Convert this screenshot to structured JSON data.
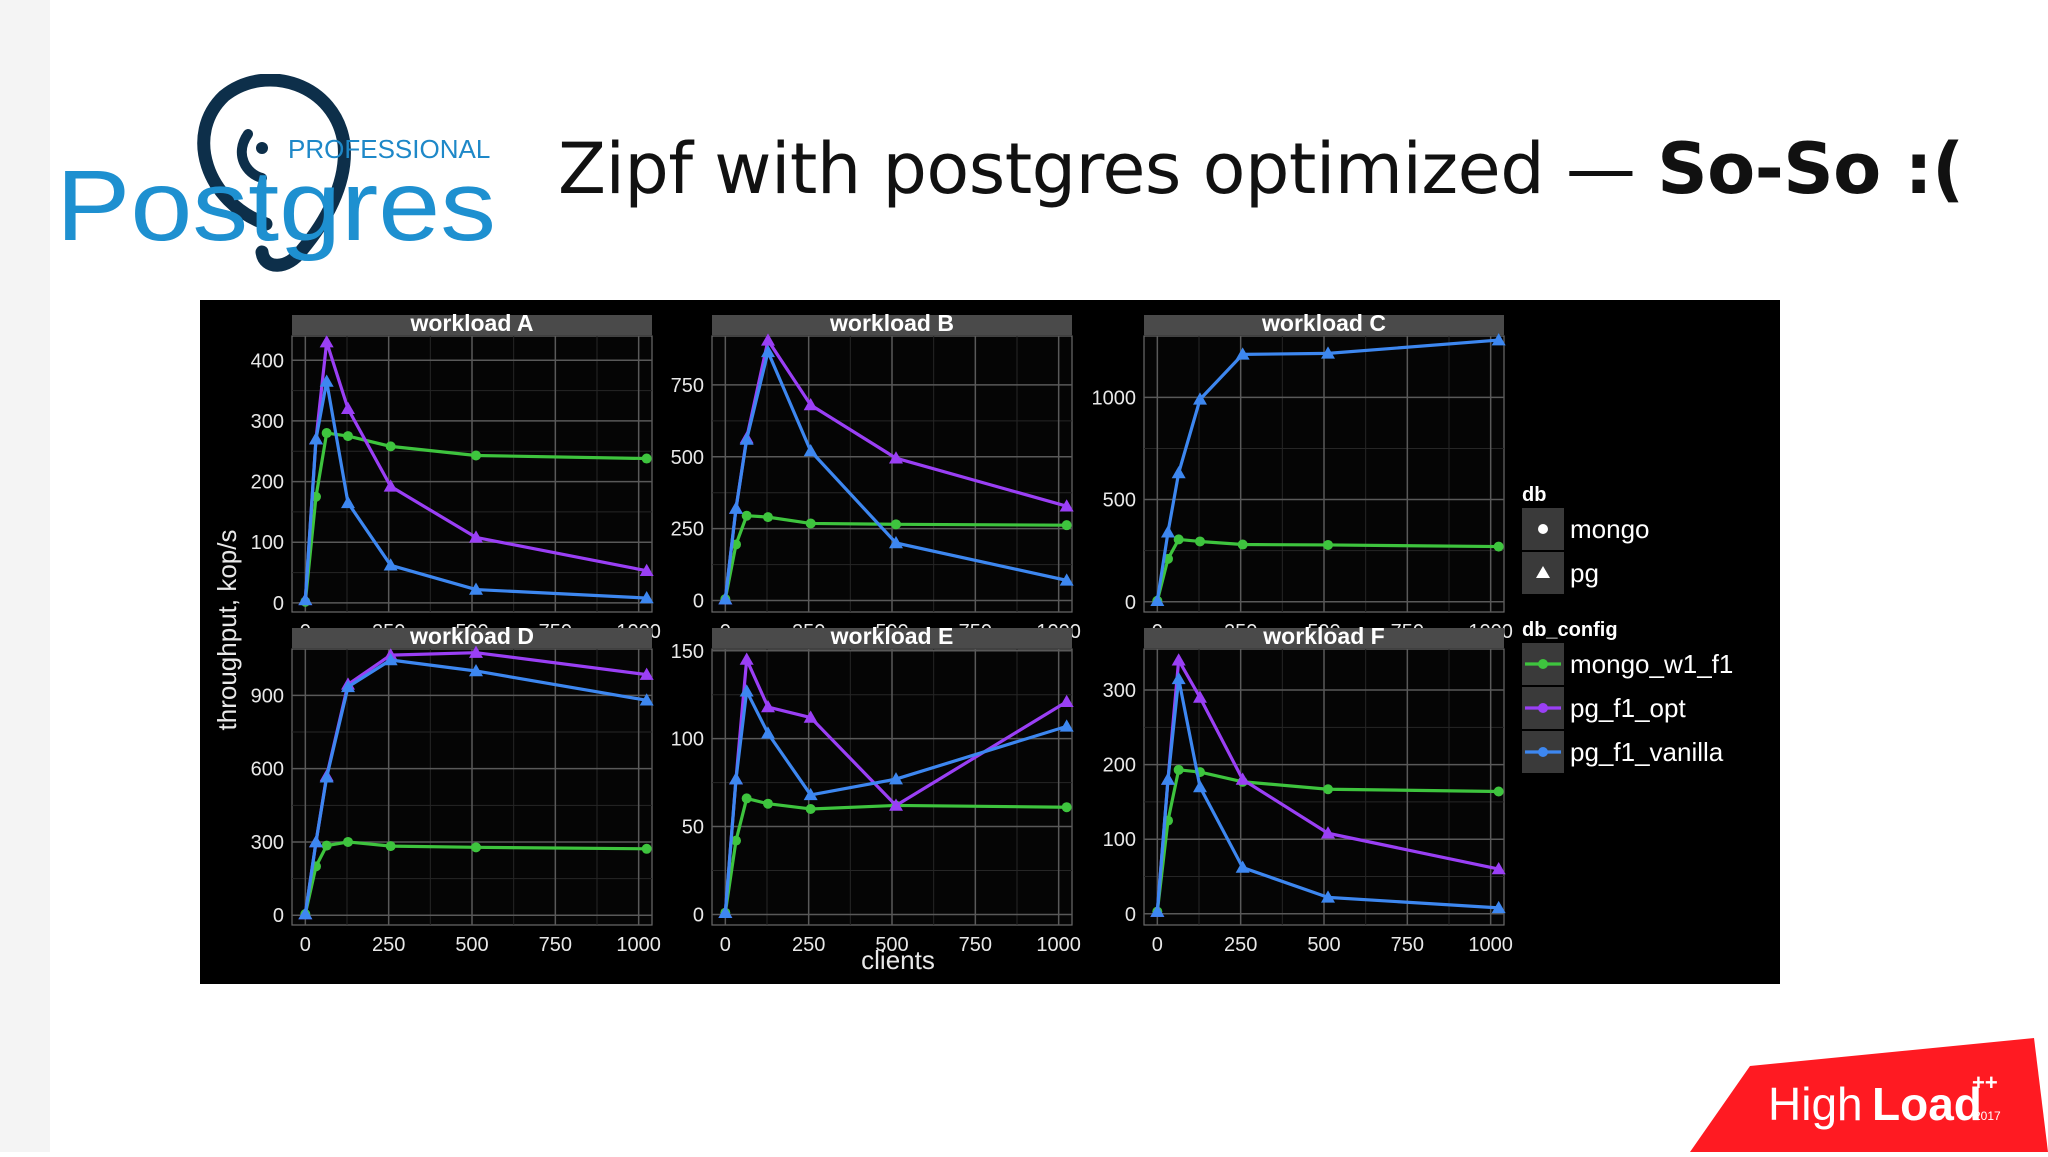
{
  "slide": {
    "title_main": "Zipf with postgres optimized —",
    "title_bold": "So-So :(",
    "logo": {
      "small_text": "PROFESSIONAL",
      "big_text": "Postgres"
    },
    "event_logo": {
      "text_light": "High",
      "text_bold": "Load",
      "superscript": "++",
      "year": "2017"
    }
  },
  "chart_data": {
    "type": "line",
    "facet_type": "grid",
    "xlabel": "clients",
    "ylabel": "throughput, kop/s",
    "x_ticks": [
      0,
      250,
      500,
      750,
      1000
    ],
    "x_tick_labels": [
      "0",
      "250",
      "500",
      "750",
      "1000"
    ],
    "xlim": [
      -40,
      1040
    ],
    "legend": {
      "placement": "right",
      "db_title": "db",
      "db_entries": [
        {
          "label": "mongo",
          "shape": "circle"
        },
        {
          "label": "pg",
          "shape": "triangle"
        }
      ],
      "config_title": "db_config",
      "config_entries": [
        {
          "label": "mongo_w1_f1",
          "color": "#3ec43e",
          "shape": "circle"
        },
        {
          "label": "pg_f1_opt",
          "color": "#9a3ff5",
          "shape": "triangle"
        },
        {
          "label": "pg_f1_vanilla",
          "color": "#3d87f0",
          "shape": "triangle"
        }
      ]
    },
    "panels": [
      {
        "title": "workload A",
        "ylim": [
          -15,
          440
        ],
        "y_ticks": [
          0,
          100,
          200,
          300,
          400
        ],
        "y_tick_labels": [
          "0",
          "100",
          "200",
          "300",
          "400"
        ],
        "series": [
          {
            "name": "mongo_w1_f1",
            "x": [
              0,
              32,
              64,
              128,
              256,
              512,
              1024
            ],
            "y": [
              2,
              175,
              280,
              275,
              258,
              243,
              238
            ]
          },
          {
            "name": "pg_f1_opt",
            "x": [
              0,
              32,
              64,
              128,
              256,
              512,
              1024
            ],
            "y": [
              5,
              270,
              430,
              320,
              192,
              108,
              53
            ]
          },
          {
            "name": "pg_f1_vanilla",
            "x": [
              0,
              32,
              64,
              128,
              256,
              512,
              1024
            ],
            "y": [
              5,
              270,
              365,
              165,
              62,
              22,
              8
            ]
          }
        ]
      },
      {
        "title": "workload B",
        "ylim": [
          -40,
          920
        ],
        "y_ticks": [
          0,
          250,
          500,
          750
        ],
        "y_tick_labels": [
          "0",
          "250",
          "500",
          "750"
        ],
        "series": [
          {
            "name": "mongo_w1_f1",
            "x": [
              0,
              32,
              64,
              128,
              256,
              512,
              1024
            ],
            "y": [
              5,
              195,
              295,
              290,
              268,
              265,
              262
            ]
          },
          {
            "name": "pg_f1_opt",
            "x": [
              0,
              32,
              64,
              128,
              256,
              512,
              1024
            ],
            "y": [
              5,
              320,
              565,
              905,
              680,
              495,
              328
            ]
          },
          {
            "name": "pg_f1_vanilla",
            "x": [
              0,
              32,
              64,
              128,
              256,
              512,
              1024
            ],
            "y": [
              5,
              320,
              560,
              865,
              520,
              200,
              70
            ]
          }
        ]
      },
      {
        "title": "workload C",
        "ylim": [
          -50,
          1300
        ],
        "y_ticks": [
          0,
          500,
          1000
        ],
        "y_tick_labels": [
          "0",
          "500",
          "1000"
        ],
        "series": [
          {
            "name": "mongo_w1_f1",
            "x": [
              0,
              32,
              64,
              128,
              256,
              512,
              1024
            ],
            "y": [
              5,
              210,
              305,
              295,
              280,
              278,
              270
            ]
          },
          {
            "name": "pg_f1_vanilla",
            "x": [
              0,
              32,
              64,
              128,
              256,
              512,
              1024
            ],
            "y": [
              5,
              340,
              630,
              990,
              1210,
              1215,
              1280
            ]
          }
        ]
      },
      {
        "title": "workload D",
        "ylim": [
          -40,
          1090
        ],
        "y_ticks": [
          0,
          300,
          600,
          900
        ],
        "y_tick_labels": [
          "0",
          "300",
          "600",
          "900"
        ],
        "series": [
          {
            "name": "mongo_w1_f1",
            "x": [
              0,
              32,
              64,
              128,
              256,
              512,
              1024
            ],
            "y": [
              5,
              200,
              285,
              300,
              283,
              278,
              272
            ]
          },
          {
            "name": "pg_f1_opt",
            "x": [
              0,
              32,
              64,
              128,
              256,
              512,
              1024
            ],
            "y": [
              5,
              300,
              570,
              945,
              1065,
              1075,
              985
            ]
          },
          {
            "name": "pg_f1_vanilla",
            "x": [
              0,
              32,
              64,
              128,
              256,
              512,
              1024
            ],
            "y": [
              5,
              300,
              565,
              935,
              1045,
              1000,
              880
            ]
          }
        ]
      },
      {
        "title": "workload E",
        "ylim": [
          -6,
          151
        ],
        "y_ticks": [
          0,
          50,
          100,
          150
        ],
        "y_tick_labels": [
          "0",
          "50",
          "100",
          "150"
        ],
        "series": [
          {
            "name": "mongo_w1_f1",
            "x": [
              0,
              32,
              64,
              128,
              256,
              512,
              1024
            ],
            "y": [
              1,
              42,
              66,
              63,
              60,
              62,
              61
            ]
          },
          {
            "name": "pg_f1_opt",
            "x": [
              0,
              32,
              64,
              128,
              256,
              512,
              1024
            ],
            "y": [
              1,
              77,
              145,
              118,
              112,
              62,
              121
            ]
          },
          {
            "name": "pg_f1_vanilla",
            "x": [
              0,
              32,
              64,
              128,
              256,
              512,
              1024
            ],
            "y": [
              1,
              77,
              127,
              103,
              68,
              77,
              107
            ]
          }
        ]
      },
      {
        "title": "workload F",
        "ylim": [
          -15,
          355
        ],
        "y_ticks": [
          0,
          100,
          200,
          300
        ],
        "y_tick_labels": [
          "0",
          "100",
          "200",
          "300"
        ],
        "series": [
          {
            "name": "mongo_w1_f1",
            "x": [
              0,
              32,
              64,
              128,
              256,
              512,
              1024
            ],
            "y": [
              3,
              125,
              193,
              190,
              177,
              167,
              164
            ]
          },
          {
            "name": "pg_f1_opt",
            "x": [
              0,
              32,
              64,
              128,
              256,
              512,
              1024
            ],
            "y": [
              3,
              180,
              340,
              290,
              180,
              108,
              60
            ]
          },
          {
            "name": "pg_f1_vanilla",
            "x": [
              0,
              32,
              64,
              128,
              256,
              512,
              1024
            ],
            "y": [
              3,
              180,
              315,
              170,
              62,
              22,
              8
            ]
          }
        ]
      }
    ]
  }
}
